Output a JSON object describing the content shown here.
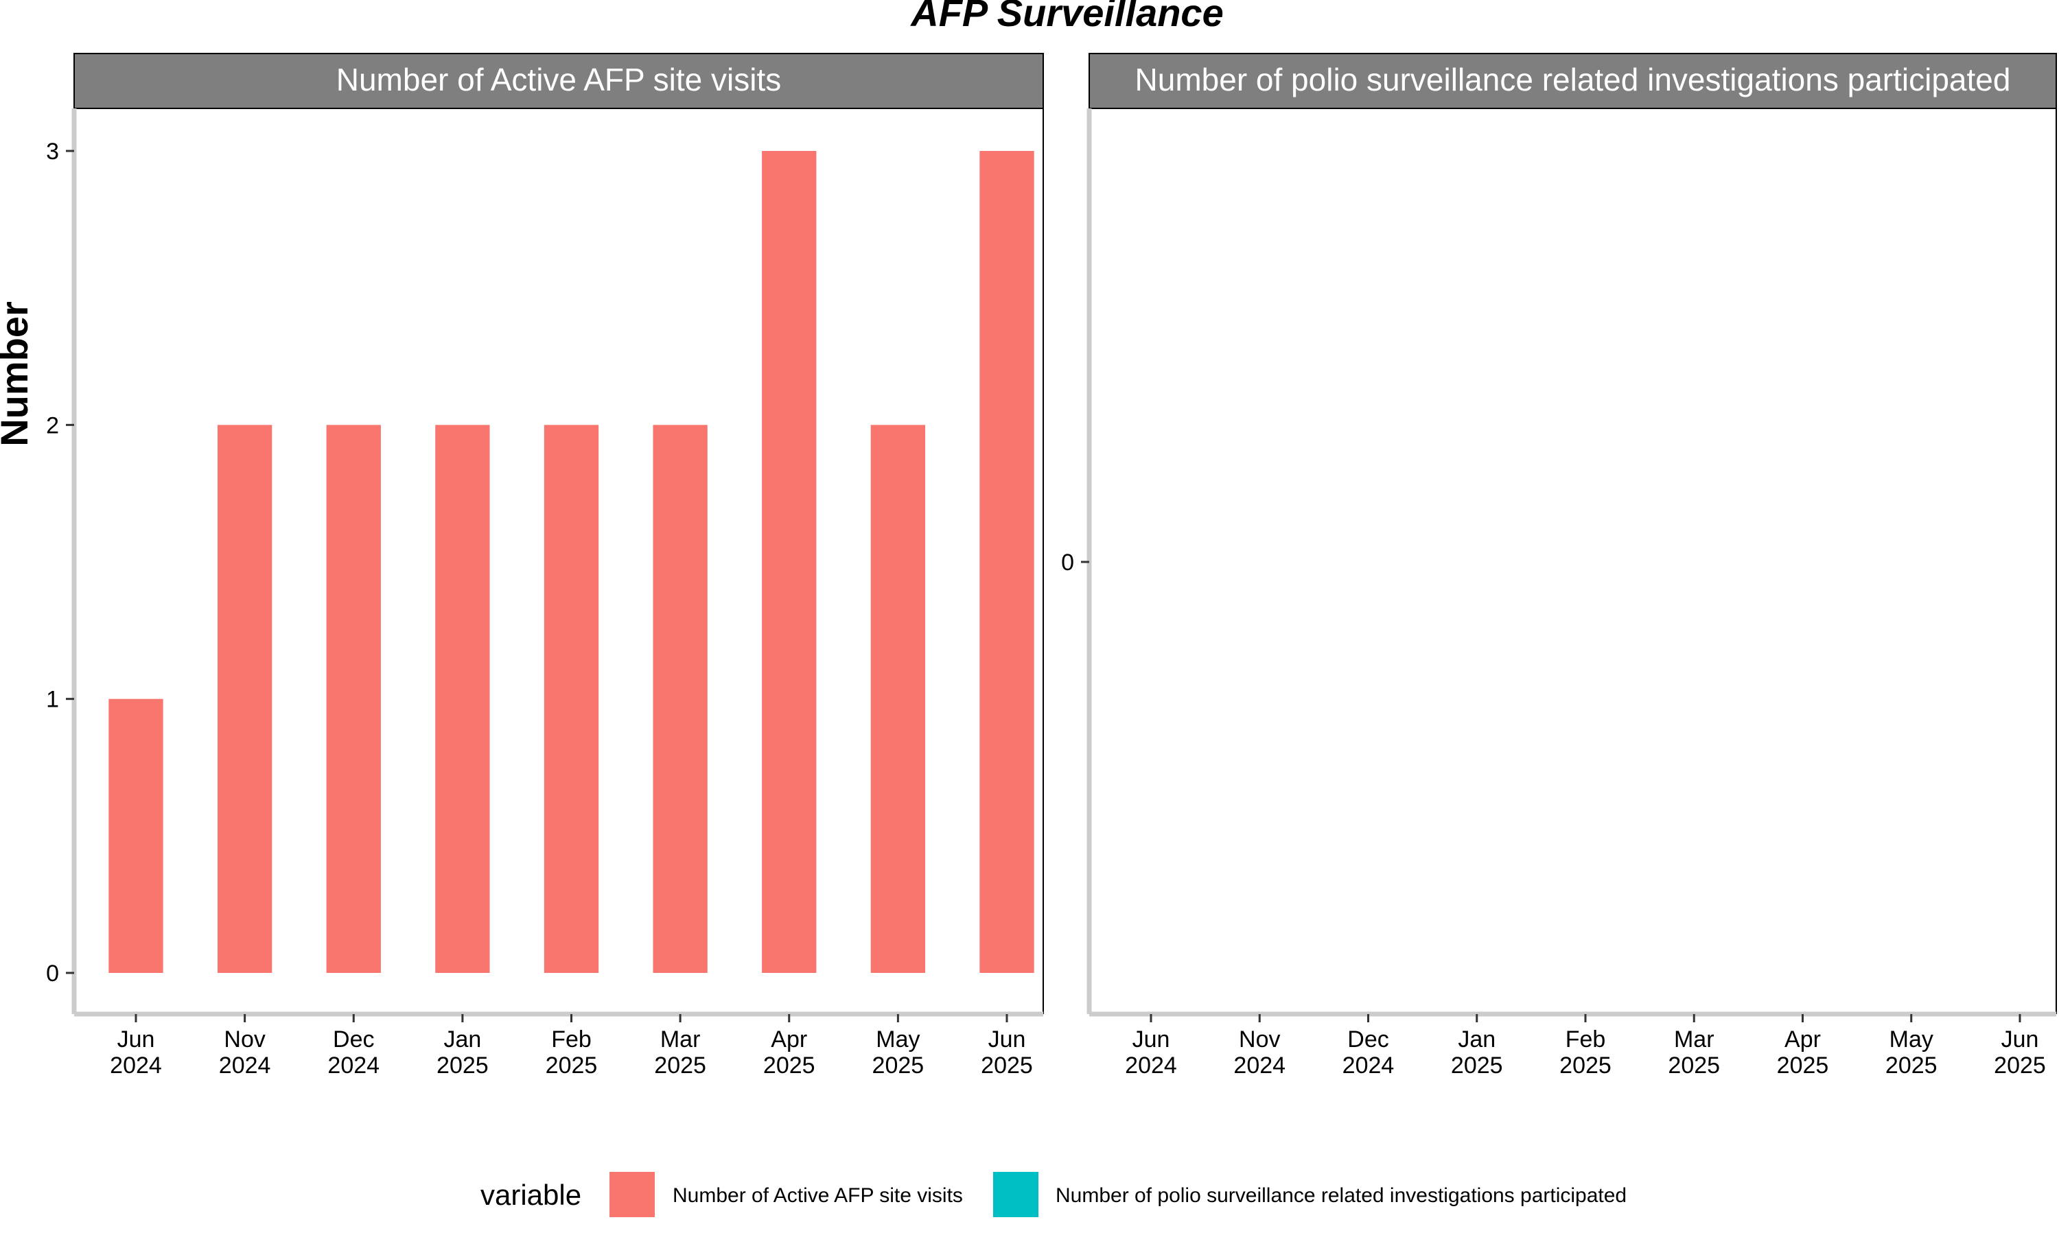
{
  "chart_data": {
    "type": "bar",
    "title": "AFP Surveillance",
    "ylabel": "Number",
    "xlabel": "",
    "categories": [
      "Jun\n2024",
      "Nov\n2024",
      "Dec\n2024",
      "Jan\n2025",
      "Feb\n2025",
      "Mar\n2025",
      "Apr\n2025",
      "May\n2025",
      "Jun\n2025"
    ],
    "legend": {
      "title": "variable",
      "position": "bottom",
      "entries": [
        {
          "label": "Number of Active AFP site visits",
          "color": "#F8766D"
        },
        {
          "label": "Number of polio surveillance related investigations participated",
          "color": "#00BFC4"
        }
      ]
    },
    "panels": [
      {
        "strip": "Number of Active AFP site visits",
        "series": [
          {
            "name": "Number of Active AFP site visits",
            "values": [
              1,
              2,
              2,
              2,
              2,
              2,
              3,
              2,
              3
            ]
          }
        ],
        "ylim": [
          0,
          3
        ],
        "yticks": [
          0,
          1,
          2,
          3
        ]
      },
      {
        "strip": "Number of polio surveillance related investigations participated",
        "series": [
          {
            "name": "Number of polio surveillance related investigations participated",
            "values": []
          }
        ],
        "ylim": [
          -1,
          1
        ],
        "yticks": [
          0
        ]
      }
    ],
    "colors": {
      "bar": "#F8766D",
      "strip_bg": "#7F7F7F",
      "axis": "#CCCCCC"
    },
    "grid": false
  }
}
